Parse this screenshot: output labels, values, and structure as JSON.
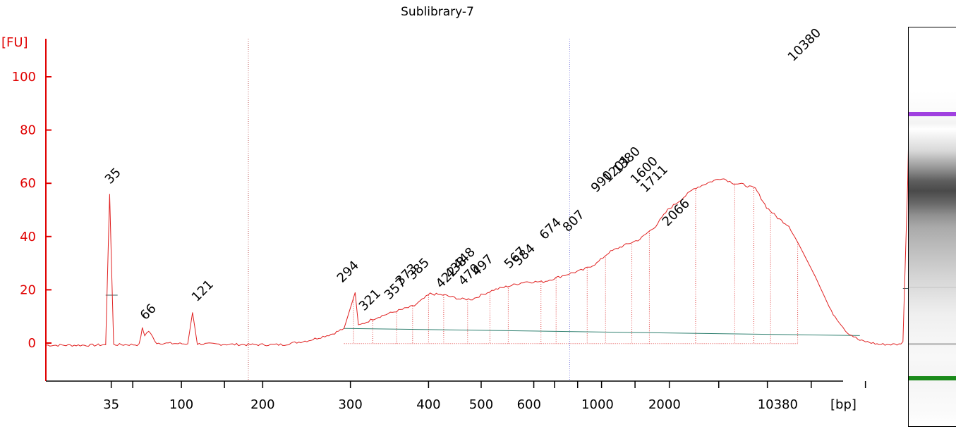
{
  "chart_data": {
    "type": "line",
    "title": "Sublibrary-7",
    "ylabel": "[FU]",
    "xlabel": "[bp]",
    "ylim": [
      -15,
      115
    ],
    "yticks": [
      0,
      20,
      40,
      60,
      80,
      100
    ],
    "xticks": [
      "35",
      "100",
      "200",
      "300",
      "400",
      "500",
      "600",
      "1000",
      "2000",
      "10380"
    ],
    "peak_labels": [
      {
        "label": "35",
        "color": "#008000",
        "marker": true
      },
      {
        "label": "66",
        "color": "#000000"
      },
      {
        "label": "121",
        "color": "#000000"
      },
      {
        "label": "294",
        "color": "#000000"
      },
      {
        "label": "321",
        "color": "#000000"
      },
      {
        "label": "357",
        "color": "#000000"
      },
      {
        "label": "373",
        "color": "#000000"
      },
      {
        "label": "385",
        "color": "#000000"
      },
      {
        "label": "422",
        "color": "#000000"
      },
      {
        "label": "438",
        "color": "#000000"
      },
      {
        "label": "448",
        "color": "#000000"
      },
      {
        "label": "470",
        "color": "#000000"
      },
      {
        "label": "497",
        "color": "#000000"
      },
      {
        "label": "567",
        "color": "#000000"
      },
      {
        "label": "584",
        "color": "#000000"
      },
      {
        "label": "674",
        "color": "#000000"
      },
      {
        "label": "807",
        "color": "#000000"
      },
      {
        "label": "990",
        "color": "#000000"
      },
      {
        "label": "1201",
        "color": "#000000"
      },
      {
        "label": "1380",
        "color": "#000000"
      },
      {
        "label": "1600",
        "color": "#000000"
      },
      {
        "label": "1711",
        "color": "#000000"
      },
      {
        "label": "2066",
        "color": "#000000"
      },
      {
        "label": "10380",
        "color": "#a040e0",
        "marker": true
      }
    ],
    "trace": [
      [
        0.0,
        -0.8
      ],
      [
        0.061,
        -0.8
      ],
      [
        0.075,
        -0.6
      ],
      [
        0.08,
        56
      ],
      [
        0.085,
        -0.6
      ],
      [
        0.117,
        -0.6
      ],
      [
        0.121,
        5.5
      ],
      [
        0.124,
        3
      ],
      [
        0.129,
        4.5
      ],
      [
        0.139,
        0
      ],
      [
        0.178,
        -0.3
      ],
      [
        0.184,
        11.5
      ],
      [
        0.19,
        -0.3
      ],
      [
        0.254,
        -0.6
      ],
      [
        0.297,
        -0.6
      ],
      [
        0.33,
        1
      ],
      [
        0.36,
        3.5
      ],
      [
        0.374,
        5.5
      ],
      [
        0.388,
        19
      ],
      [
        0.392,
        6.5
      ],
      [
        0.41,
        9
      ],
      [
        0.424,
        10.5
      ],
      [
        0.44,
        12
      ],
      [
        0.462,
        14
      ],
      [
        0.482,
        18.5
      ],
      [
        0.5,
        18
      ],
      [
        0.52,
        16.5
      ],
      [
        0.535,
        16.5
      ],
      [
        0.546,
        18
      ],
      [
        0.562,
        20
      ],
      [
        0.582,
        21.5
      ],
      [
        0.601,
        23
      ],
      [
        0.624,
        23
      ],
      [
        0.64,
        24.5
      ],
      [
        0.656,
        26
      ],
      [
        0.674,
        27.5
      ],
      [
        0.691,
        30
      ],
      [
        0.706,
        34
      ],
      [
        0.72,
        36
      ],
      [
        0.745,
        39
      ],
      [
        0.765,
        44
      ],
      [
        0.78,
        50
      ],
      [
        0.797,
        54
      ],
      [
        0.813,
        58
      ],
      [
        0.833,
        60.5
      ],
      [
        0.848,
        62
      ],
      [
        0.863,
        60
      ],
      [
        0.875,
        59.5
      ],
      [
        0.89,
        58
      ],
      [
        0.904,
        51
      ],
      [
        0.918,
        47
      ],
      [
        0.932,
        44
      ],
      [
        0.948,
        35
      ],
      [
        0.965,
        25
      ],
      [
        0.985,
        12
      ],
      [
        1.005,
        4
      ],
      [
        1.021,
        1
      ],
      [
        1.045,
        -0.5
      ],
      [
        1.07,
        -0.5
      ],
      [
        1.075,
        0.5
      ],
      [
        1.081,
        60
      ],
      [
        1.084,
        103.5
      ],
      [
        1.087,
        60
      ],
      [
        1.093,
        1
      ],
      [
        1.11,
        -1.5
      ],
      [
        1.16,
        -2.8
      ]
    ],
    "marker_lines": [
      0.254,
      0.657
    ],
    "fragments": [
      0.386,
      0.41,
      0.44,
      0.46,
      0.48,
      0.499,
      0.529,
      0.557,
      0.58,
      0.621,
      0.64,
      0.679,
      0.702,
      0.735,
      0.757,
      0.815,
      0.864,
      0.888,
      0.909,
      0.943
    ],
    "grid": false
  }
}
